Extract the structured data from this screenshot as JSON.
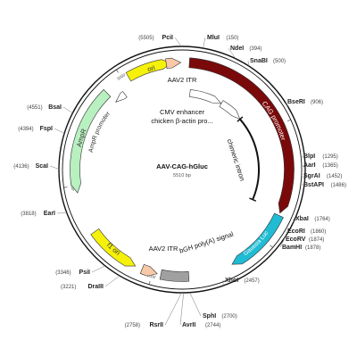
{
  "plasmid": {
    "name": "AAV-CAG-hGluc",
    "size_label": "5510 bp",
    "length": 5510
  },
  "ticks": [
    {
      "pos": 1000,
      "label": "1000"
    },
    {
      "pos": 2000,
      "label": "2000"
    },
    {
      "pos": 3000,
      "label": "3000"
    },
    {
      "pos": 4000,
      "label": "4000"
    },
    {
      "pos": 5000,
      "label": "5000"
    }
  ],
  "features": [
    {
      "name": "CAG promoter",
      "start": 60,
      "end": 1745,
      "ring": "outer",
      "direction": "cw",
      "color": "#7a0a0a",
      "label_inside": true,
      "label_text_color": "#ffffff"
    },
    {
      "name": "Gaussia Luc",
      "start": 1765,
      "end": 2330,
      "ring": "outer",
      "direction": "cw",
      "color": "#1fbcd4",
      "label_inside": true,
      "label_text_color": "#ffffff"
    },
    {
      "name": "bGH poly(A) signal",
      "start": 2700,
      "end": 2930,
      "ring": "outer",
      "direction": "none",
      "color": "#a0a0a0",
      "label_inside": false
    },
    {
      "name": "AAV2 ITR",
      "start": 2960,
      "end": 3090,
      "ring": "outer",
      "direction": "ccw",
      "color": "#f8c8a8",
      "label_inside": false
    },
    {
      "name": "f1 ori",
      "start": 3150,
      "end": 3590,
      "ring": "outer",
      "direction": "ccw",
      "color": "#f5f10a",
      "label_inside": true,
      "label_text_color": "#333333"
    },
    {
      "name": "AmpR",
      "start": 3940,
      "end": 4830,
      "ring": "outer",
      "direction": "ccw",
      "color": "#b8f0c0",
      "label_inside": true,
      "label_text_color": "#333333"
    },
    {
      "name": "ori",
      "start": 5050,
      "end": 5420,
      "ring": "outer",
      "direction": "cw",
      "color": "#f5f10a",
      "label_inside": true,
      "label_text_color": "#333333"
    },
    {
      "name": "AAV2 ITR",
      "start": 5380,
      "end": 5500,
      "ring": "outer",
      "direction": "cw",
      "color": "#f8c8a8",
      "label_inside": false
    },
    {
      "name": "CMV enhancer",
      "start": 90,
      "end": 470,
      "ring": "inner",
      "direction": "cw",
      "color": "#ffffff",
      "label_inside": false
    },
    {
      "name": "chicken β-actin pro...",
      "start": 470,
      "end": 750,
      "ring": "inner",
      "direction": "cw",
      "color": "#ffffff",
      "label_inside": false
    },
    {
      "name": "chimeric intron",
      "start": 750,
      "end": 1730,
      "ring": "inner",
      "direction": "none",
      "color": "#111111",
      "label_inside": false
    },
    {
      "name": "AmpR promoter",
      "start": 4830,
      "end": 4940,
      "ring": "outer-inner",
      "direction": "ccw",
      "color": "#ffffff",
      "label_inside": false
    }
  ],
  "feature_labels": {
    "cmv": "CMV enhancer",
    "cba": "chicken β-actin pro...",
    "intron": "chimeric intron",
    "itr_top": "AAV2 ITR",
    "itr_bottom": "AAV2 ITR",
    "bgh": "bGH poly(A) signal",
    "amp_promoter": "AmpR promoter",
    "cag": "CAG promoter",
    "gluc": "Gaussia Luc",
    "f1": "f1 ori",
    "ampr": "AmpR",
    "ori": "ori"
  },
  "sites": [
    {
      "name": "PciI",
      "pos_label": "(5505)",
      "pos": 5505,
      "side": "left"
    },
    {
      "name": "MluI",
      "pos_label": "(150)",
      "pos": 150,
      "side": "right"
    },
    {
      "name": "NdeI",
      "pos_label": "(394)",
      "pos": 394,
      "side": "right"
    },
    {
      "name": "SnaBI",
      "pos_label": "(500)",
      "pos": 500,
      "side": "right"
    },
    {
      "name": "BseRI",
      "pos_label": "(906)",
      "pos": 906,
      "side": "right"
    },
    {
      "name": "BlpI",
      "pos_label": "(1295)",
      "pos": 1295,
      "side": "right"
    },
    {
      "name": "AarI",
      "pos_label": "(1365)",
      "pos": 1365,
      "side": "right"
    },
    {
      "name": "SgrAI",
      "pos_label": "(1452)",
      "pos": 1452,
      "side": "right"
    },
    {
      "name": "BstAPI",
      "pos_label": "(1486)",
      "pos": 1486,
      "side": "right"
    },
    {
      "name": "XbaI",
      "pos_label": "(1764)",
      "pos": 1764,
      "side": "right"
    },
    {
      "name": "EcoRI",
      "pos_label": "(1860)",
      "pos": 1860,
      "side": "right"
    },
    {
      "name": "EcoRV",
      "pos_label": "(1874)",
      "pos": 1874,
      "side": "right"
    },
    {
      "name": "BamHI",
      "pos_label": "(1878)",
      "pos": 1878,
      "side": "right"
    },
    {
      "name": "XhoI",
      "pos_label": "(2457)",
      "pos": 2457,
      "side": "right"
    },
    {
      "name": "SphI",
      "pos_label": "(2700)",
      "pos": 2700,
      "side": "right"
    },
    {
      "name": "AvrII",
      "pos_label": "(2744)",
      "pos": 2744,
      "side": "right"
    },
    {
      "name": "RsrII",
      "pos_label": "(2758)",
      "pos": 2758,
      "side": "left"
    },
    {
      "name": "DraIII",
      "pos_label": "(3221)",
      "pos": 3221,
      "side": "left"
    },
    {
      "name": "PsiI",
      "pos_label": "(3346)",
      "pos": 3346,
      "side": "left"
    },
    {
      "name": "EarI",
      "pos_label": "(3818)",
      "pos": 3818,
      "side": "left"
    },
    {
      "name": "ScaI",
      "pos_label": "(4136)",
      "pos": 4136,
      "side": "left"
    },
    {
      "name": "FspI",
      "pos_label": "(4394)",
      "pos": 4394,
      "side": "left"
    },
    {
      "name": "BsaI",
      "pos_label": "(4551)",
      "pos": 4551,
      "side": "left"
    }
  ]
}
